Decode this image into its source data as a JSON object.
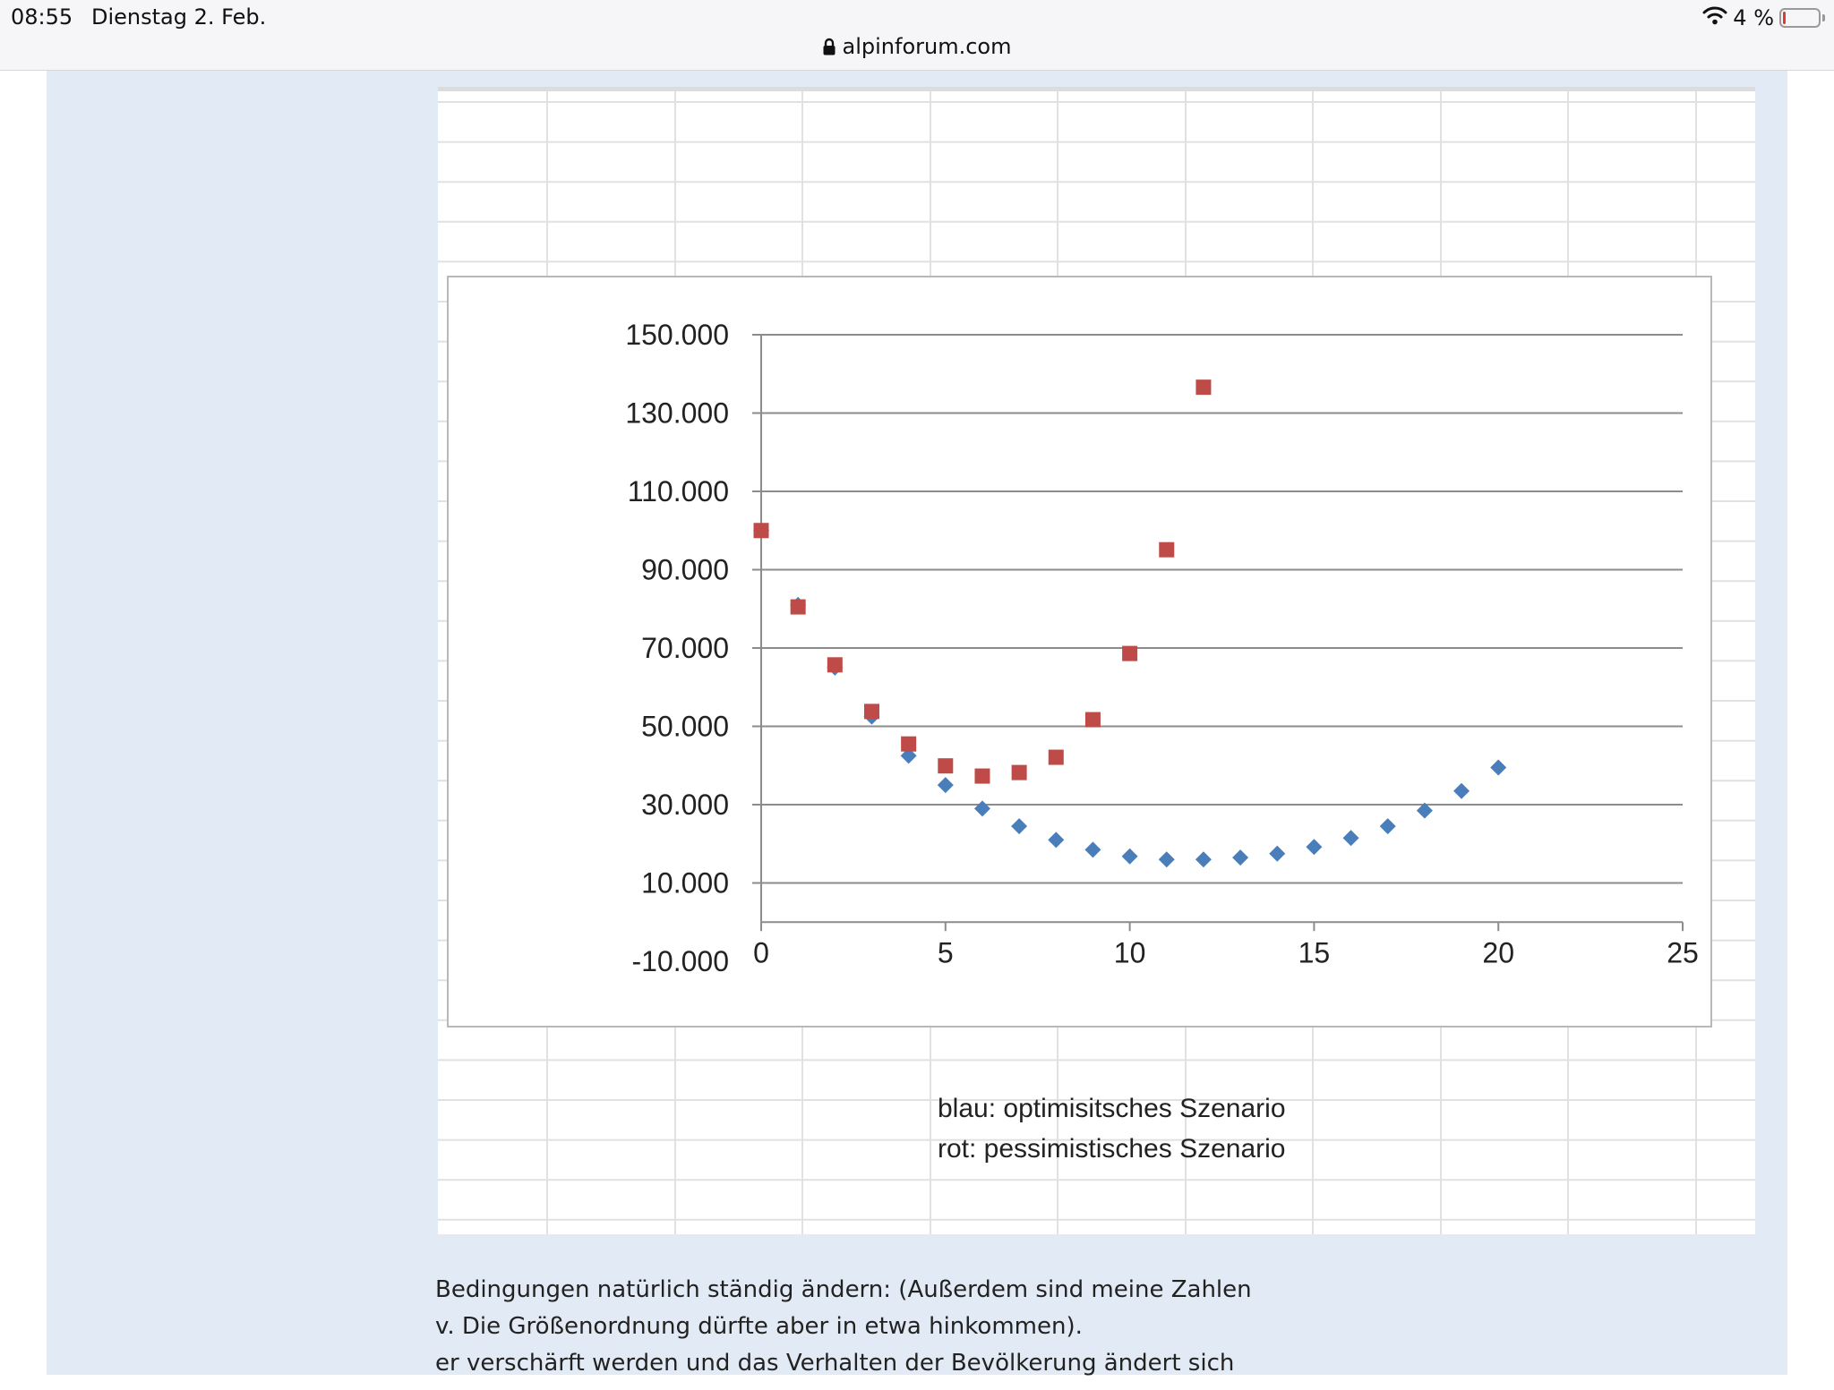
{
  "status_bar": {
    "time": "08:55",
    "date": "Dienstag 2. Feb.",
    "battery_percent": "4 %",
    "battery_level": 0.04,
    "icons": [
      "wifi-icon",
      "battery-icon"
    ]
  },
  "browser": {
    "url": "alpinforum.com",
    "lock_icon": "lock-icon"
  },
  "legend_notes": [
    "blau: optimisitsches Szenario",
    "rot: pessimistisches Szenario"
  ],
  "body_text": [
    "Bedingungen natürlich ständig ändern: (Außerdem sind meine Zahlen",
    "v. Die Größenordnung dürfte aber in etwa hinkommen).",
    "er verschärft werden und das Verhalten der Bevölkerung ändert sich"
  ],
  "colors": {
    "blue_series": "#4a7ebb",
    "red_series": "#be4b48",
    "page_background": "#e2ebf5"
  },
  "chart_data": {
    "type": "scatter",
    "title": "",
    "xlabel": "",
    "ylabel": "",
    "xlim": [
      0,
      25
    ],
    "ylim": [
      -10000,
      150000
    ],
    "x_ticks": [
      0,
      5,
      10,
      15,
      20,
      25
    ],
    "x_tick_labels": [
      "0",
      "5",
      "10",
      "15",
      "20",
      "25"
    ],
    "y_ticks": [
      -10000,
      10000,
      30000,
      50000,
      70000,
      90000,
      110000,
      130000,
      150000
    ],
    "y_tick_labels": [
      "-10.000",
      "10.000",
      "30.000",
      "50.000",
      "70.000",
      "90.000",
      "110.000",
      "130.000",
      "150.000"
    ],
    "grid": "horizontal",
    "legend": "none",
    "series": [
      {
        "color": "#4a7ebb",
        "marker": "diamond",
        "x": [
          0,
          1,
          2,
          3,
          4,
          5,
          6,
          7,
          8,
          9,
          10,
          11,
          12,
          13,
          14,
          15,
          16,
          17,
          18,
          19,
          20
        ],
        "y": [
          100000,
          81000,
          65000,
          52500,
          42500,
          35000,
          29000,
          24500,
          21000,
          18500,
          16800,
          16000,
          16000,
          16500,
          17500,
          19200,
          21500,
          24500,
          28500,
          33500,
          39500
        ]
      },
      {
        "color": "#be4b48",
        "marker": "square",
        "x": [
          0,
          1,
          2,
          3,
          4,
          5,
          6,
          7,
          8,
          9,
          10,
          11,
          12
        ],
        "y": [
          100000,
          80500,
          65700,
          53800,
          45500,
          39900,
          37300,
          38200,
          42100,
          51700,
          68600,
          95100,
          136600
        ]
      }
    ]
  }
}
